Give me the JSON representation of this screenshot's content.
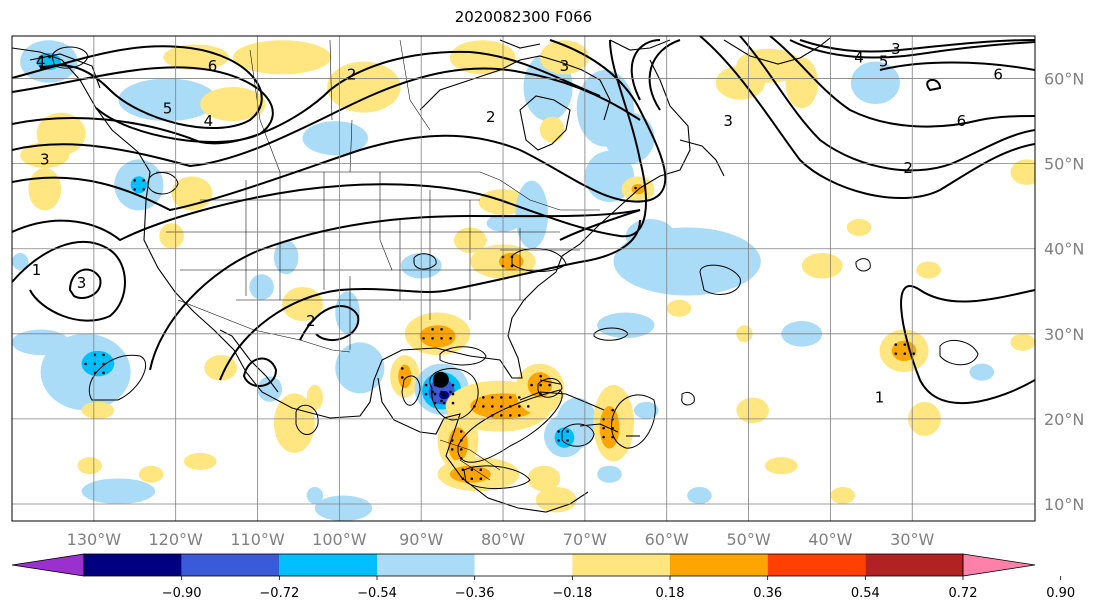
{
  "title": "2020082300 F066",
  "colors": {
    "coast": "#000000",
    "grid": "#808080",
    "contour": "#000000",
    "storm_marker": "#000000"
  },
  "map": {
    "lon_min": -140,
    "lon_max": -15,
    "lat_min": 8,
    "lat_max": 65,
    "lon_ticks": [
      -130,
      -120,
      -110,
      -100,
      -90,
      -80,
      -70,
      -60,
      -50,
      -40,
      -30
    ],
    "lon_labels": [
      "130°W",
      "120°W",
      "110°W",
      "100°W",
      "90°W",
      "80°W",
      "70°W",
      "60°W",
      "50°W",
      "40°W",
      "30°W"
    ],
    "lat_ticks": [
      10,
      20,
      30,
      40,
      50,
      60
    ],
    "lat_labels": [
      "10°N",
      "20°N",
      "30°N",
      "40°N",
      "50°N",
      "60°N"
    ]
  },
  "storm": {
    "lon": -87.6,
    "lat": 24.6
  },
  "colorbar": {
    "colors": [
      "#9b30d0",
      "#000080",
      "#3a5bd9",
      "#00bfff",
      "#aadcf7",
      "#ffffff",
      "#ffe680",
      "#ffa500",
      "#ff4000",
      "#b22222",
      "#ff80a8"
    ],
    "labels": [
      "−0.90",
      "−0.72",
      "−0.54",
      "−0.36",
      "−0.18",
      "0.18",
      "0.36",
      "0.54",
      "0.72",
      "0.90"
    ]
  },
  "contour_labels": [
    {
      "text": "4",
      "lon": -136.5,
      "lat": 62.0
    },
    {
      "text": "3",
      "lon": -136.0,
      "lat": 50.5
    },
    {
      "text": "6",
      "lon": -115.5,
      "lat": 61.5
    },
    {
      "text": "5",
      "lon": -121.0,
      "lat": 56.5
    },
    {
      "text": "4",
      "lon": -116.0,
      "lat": 55.0
    },
    {
      "text": "2",
      "lon": -98.5,
      "lat": 60.5
    },
    {
      "text": "1",
      "lon": -137.0,
      "lat": 37.5
    },
    {
      "text": "3",
      "lon": -131.5,
      "lat": 36.0
    },
    {
      "text": "2",
      "lon": -103.5,
      "lat": 31.5
    },
    {
      "text": "2",
      "lon": -81.5,
      "lat": 55.5
    },
    {
      "text": "3",
      "lon": -72.5,
      "lat": 61.5
    },
    {
      "text": "3",
      "lon": -32.0,
      "lat": 63.5
    },
    {
      "text": "4",
      "lon": -36.5,
      "lat": 62.5
    },
    {
      "text": "5",
      "lon": -33.5,
      "lat": 62.0
    },
    {
      "text": "6",
      "lon": -19.5,
      "lat": 60.5
    },
    {
      "text": "3",
      "lon": -52.5,
      "lat": 55.0
    },
    {
      "text": "6",
      "lon": -24.0,
      "lat": 55.0
    },
    {
      "text": "2",
      "lon": -30.5,
      "lat": 49.5
    },
    {
      "text": "1",
      "lon": -34.0,
      "lat": 22.5
    }
  ],
  "fill_regions": [
    {
      "color": "#ffe680",
      "lon": -117.5,
      "lat": 62.5,
      "rx": 4.0,
      "ry": 1.5
    },
    {
      "color": "#ffe680",
      "lon": -107.0,
      "lat": 62.5,
      "rx": 6.0,
      "ry": 2.0
    },
    {
      "color": "#aadcf7",
      "lon": -135.5,
      "lat": 62.0,
      "rx": 3.5,
      "ry": 2.5
    },
    {
      "color": "#00bfff",
      "lon": -135.5,
      "lat": 62.0,
      "rx": 1.5,
      "ry": 1.0
    },
    {
      "color": "#aadcf7",
      "lon": -121.0,
      "lat": 57.5,
      "rx": 6.0,
      "ry": 2.5
    },
    {
      "color": "#ffe680",
      "lon": -113.0,
      "lat": 57.0,
      "rx": 4.0,
      "ry": 2.0
    },
    {
      "color": "#ffe680",
      "lon": -134.0,
      "lat": 53.5,
      "rx": 3.0,
      "ry": 2.5
    },
    {
      "color": "#ffe680",
      "lon": -136.0,
      "lat": 51.0,
      "rx": 3.0,
      "ry": 1.5
    },
    {
      "color": "#ffe680",
      "lon": -136.0,
      "lat": 47.0,
      "rx": 2.0,
      "ry": 2.5
    },
    {
      "color": "#aadcf7",
      "lon": -124.5,
      "lat": 47.5,
      "rx": 3.0,
      "ry": 3.0
    },
    {
      "color": "#00bfff",
      "lon": -124.5,
      "lat": 47.5,
      "rx": 1.0,
      "ry": 1.0
    },
    {
      "color": "#ffe680",
      "lon": -118.0,
      "lat": 46.5,
      "rx": 2.5,
      "ry": 2.0
    },
    {
      "color": "#aadcf7",
      "lon": -100.5,
      "lat": 53.0,
      "rx": 4.0,
      "ry": 2.0
    },
    {
      "color": "#ffe680",
      "lon": -97.0,
      "lat": 59.0,
      "rx": 4.5,
      "ry": 3.0
    },
    {
      "color": "#ffe680",
      "lon": -82.5,
      "lat": 62.5,
      "rx": 4.0,
      "ry": 2.0
    },
    {
      "color": "#aadcf7",
      "lon": -74.5,
      "lat": 59.0,
      "rx": 3.0,
      "ry": 4.0
    },
    {
      "color": "#ffe680",
      "lon": -72.5,
      "lat": 62.5,
      "rx": 3.0,
      "ry": 2.0
    },
    {
      "color": "#aadcf7",
      "lon": -67.5,
      "lat": 56.5,
      "rx": 3.5,
      "ry": 4.5
    },
    {
      "color": "#aadcf7",
      "lon": -64.5,
      "lat": 53.0,
      "rx": 3.0,
      "ry": 3.0
    },
    {
      "color": "#aadcf7",
      "lon": -67.0,
      "lat": 48.5,
      "rx": 3.0,
      "ry": 3.0
    },
    {
      "color": "#ffe680",
      "lon": -74.0,
      "lat": 54.0,
      "rx": 1.5,
      "ry": 1.5
    },
    {
      "color": "#ffe680",
      "lon": -63.5,
      "lat": 47.0,
      "rx": 2.0,
      "ry": 1.5
    },
    {
      "color": "#ffa500",
      "lon": -63.5,
      "lat": 47.0,
      "rx": 0.8,
      "ry": 0.6
    },
    {
      "color": "#ffe680",
      "lon": -47.5,
      "lat": 61.5,
      "rx": 4.0,
      "ry": 2.0
    },
    {
      "color": "#ffe680",
      "lon": -43.5,
      "lat": 59.5,
      "rx": 2.0,
      "ry": 3.0
    },
    {
      "color": "#ffe680",
      "lon": -51.0,
      "lat": 59.5,
      "rx": 3.0,
      "ry": 2.0
    },
    {
      "color": "#aadcf7",
      "lon": -34.5,
      "lat": 59.5,
      "rx": 3.0,
      "ry": 2.5
    },
    {
      "color": "#ffe680",
      "lon": -16.0,
      "lat": 49.0,
      "rx": 2.0,
      "ry": 1.5
    },
    {
      "color": "#ffe680",
      "lon": -80.0,
      "lat": 45.5,
      "rx": 3.0,
      "ry": 1.5
    },
    {
      "color": "#aadcf7",
      "lon": -80.0,
      "lat": 43.0,
      "rx": 2.0,
      "ry": 1.0
    },
    {
      "color": "#aadcf7",
      "lon": -76.5,
      "lat": 44.0,
      "rx": 2.0,
      "ry": 4.0
    },
    {
      "color": "#ffe680",
      "lon": -84.0,
      "lat": 41.0,
      "rx": 2.0,
      "ry": 1.5
    },
    {
      "color": "#ffe680",
      "lon": -80.0,
      "lat": 38.5,
      "rx": 4.0,
      "ry": 2.0
    },
    {
      "color": "#ffa500",
      "lon": -79.0,
      "lat": 38.5,
      "rx": 1.5,
      "ry": 1.0
    },
    {
      "color": "#aadcf7",
      "lon": -90.0,
      "lat": 38.0,
      "rx": 2.5,
      "ry": 1.5
    },
    {
      "color": "#aadcf7",
      "lon": -106.5,
      "lat": 39.0,
      "rx": 1.5,
      "ry": 2.0
    },
    {
      "color": "#aadcf7",
      "lon": -109.5,
      "lat": 35.5,
      "rx": 1.5,
      "ry": 1.5
    },
    {
      "color": "#ffe680",
      "lon": -120.5,
      "lat": 41.5,
      "rx": 1.5,
      "ry": 1.5
    },
    {
      "color": "#aadcf7",
      "lon": -139.0,
      "lat": 38.5,
      "rx": 1.0,
      "ry": 1.0
    },
    {
      "color": "#ffe680",
      "lon": -104.5,
      "lat": 33.5,
      "rx": 2.5,
      "ry": 2.0
    },
    {
      "color": "#aadcf7",
      "lon": -99.0,
      "lat": 32.5,
      "rx": 1.5,
      "ry": 2.5
    },
    {
      "color": "#aadcf7",
      "lon": -57.5,
      "lat": 38.5,
      "rx": 9.0,
      "ry": 4.0
    },
    {
      "color": "#aadcf7",
      "lon": -62.0,
      "lat": 41.5,
      "rx": 3.0,
      "ry": 2.0
    },
    {
      "color": "#aadcf7",
      "lon": -55.0,
      "lat": 37.5,
      "rx": 3.5,
      "ry": 2.5
    },
    {
      "color": "#ffe680",
      "lon": -41.0,
      "lat": 38.0,
      "rx": 2.5,
      "ry": 1.5
    },
    {
      "color": "#ffe680",
      "lon": -36.5,
      "lat": 42.5,
      "rx": 1.5,
      "ry": 1.0
    },
    {
      "color": "#ffe680",
      "lon": -28.0,
      "lat": 37.5,
      "rx": 1.5,
      "ry": 1.0
    },
    {
      "color": "#aadcf7",
      "lon": -65.0,
      "lat": 31.0,
      "rx": 3.5,
      "ry": 1.5
    },
    {
      "color": "#aadcf7",
      "lon": -43.5,
      "lat": 30.0,
      "rx": 2.5,
      "ry": 1.5
    },
    {
      "color": "#ffe680",
      "lon": -58.5,
      "lat": 33.0,
      "rx": 1.5,
      "ry": 1.0
    },
    {
      "color": "#aadcf7",
      "lon": -131.0,
      "lat": 25.5,
      "rx": 5.5,
      "ry": 4.5
    },
    {
      "color": "#00bfff",
      "lon": -129.5,
      "lat": 26.5,
      "rx": 2.0,
      "ry": 1.5
    },
    {
      "color": "#aadcf7",
      "lon": -136.5,
      "lat": 29.0,
      "rx": 3.5,
      "ry": 1.5
    },
    {
      "color": "#ffe680",
      "lon": -129.5,
      "lat": 21.0,
      "rx": 2.0,
      "ry": 1.0
    },
    {
      "color": "#aadcf7",
      "lon": -127.0,
      "lat": 11.5,
      "rx": 4.5,
      "ry": 1.5
    },
    {
      "color": "#ffe680",
      "lon": -114.5,
      "lat": 26.0,
      "rx": 2.0,
      "ry": 1.5
    },
    {
      "color": "#ffe680",
      "lon": -117.0,
      "lat": 15.0,
      "rx": 2.0,
      "ry": 1.0
    },
    {
      "color": "#ffe680",
      "lon": -105.5,
      "lat": 19.5,
      "rx": 2.5,
      "ry": 3.5
    },
    {
      "color": "#aadcf7",
      "lon": -108.5,
      "lat": 23.5,
      "rx": 1.5,
      "ry": 1.5
    },
    {
      "color": "#ffe680",
      "lon": -103.0,
      "lat": 22.5,
      "rx": 1.0,
      "ry": 1.5
    },
    {
      "color": "#aadcf7",
      "lon": -99.5,
      "lat": 9.5,
      "rx": 3.5,
      "ry": 1.5
    },
    {
      "color": "#aadcf7",
      "lon": -97.5,
      "lat": 26.0,
      "rx": 3.0,
      "ry": 3.0
    },
    {
      "color": "#ffe680",
      "lon": -88.0,
      "lat": 30.0,
      "rx": 4.0,
      "ry": 2.5
    },
    {
      "color": "#ffa500",
      "lon": -88.0,
      "lat": 29.7,
      "rx": 2.2,
      "ry": 1.3
    },
    {
      "color": "#ffe680",
      "lon": -92.0,
      "lat": 25.0,
      "rx": 1.8,
      "ry": 2.5
    },
    {
      "color": "#ffa500",
      "lon": -92.0,
      "lat": 25.0,
      "rx": 0.8,
      "ry": 1.4
    },
    {
      "color": "#aadcf7",
      "lon": -87.5,
      "lat": 23.5,
      "rx": 3.3,
      "ry": 3.0
    },
    {
      "color": "#00bfff",
      "lon": -87.5,
      "lat": 23.3,
      "rx": 2.4,
      "ry": 2.2
    },
    {
      "color": "#3a5bd9",
      "lon": -87.5,
      "lat": 23.2,
      "rx": 1.6,
      "ry": 1.5
    },
    {
      "color": "#000080",
      "lon": -87.2,
      "lat": 22.8,
      "rx": 0.6,
      "ry": 0.5
    },
    {
      "color": "#ffe680",
      "lon": -80.5,
      "lat": 21.5,
      "rx": 6.5,
      "ry": 3.0
    },
    {
      "color": "#ffa500",
      "lon": -80.0,
      "lat": 21.5,
      "rx": 4.0,
      "ry": 1.5
    },
    {
      "color": "#ffe680",
      "lon": -75.5,
      "lat": 23.5,
      "rx": 3.0,
      "ry": 3.0
    },
    {
      "color": "#ffa500",
      "lon": -75.5,
      "lat": 24.0,
      "rx": 1.5,
      "ry": 1.5
    },
    {
      "color": "#ffe680",
      "lon": -85.5,
      "lat": 17.5,
      "rx": 2.5,
      "ry": 3.5
    },
    {
      "color": "#ffa500",
      "lon": -85.5,
      "lat": 17.0,
      "rx": 1.2,
      "ry": 2.0
    },
    {
      "color": "#ffe680",
      "lon": -83.0,
      "lat": 13.5,
      "rx": 5.0,
      "ry": 2.0
    },
    {
      "color": "#ffa500",
      "lon": -84.0,
      "lat": 13.5,
      "rx": 2.5,
      "ry": 1.0
    },
    {
      "color": "#ffe680",
      "lon": -75.0,
      "lat": 13.0,
      "rx": 2.0,
      "ry": 1.5
    },
    {
      "color": "#ffe680",
      "lon": -73.5,
      "lat": 10.5,
      "rx": 2.5,
      "ry": 1.5
    },
    {
      "color": "#aadcf7",
      "lon": -71.0,
      "lat": 19.5,
      "rx": 2.5,
      "ry": 3.0
    },
    {
      "color": "#aadcf7",
      "lon": -72.5,
      "lat": 18.0,
      "rx": 2.5,
      "ry": 2.5
    },
    {
      "color": "#00bfff",
      "lon": -72.5,
      "lat": 17.8,
      "rx": 1.2,
      "ry": 1.2
    },
    {
      "color": "#ffe680",
      "lon": -66.5,
      "lat": 19.5,
      "rx": 2.5,
      "ry": 4.5
    },
    {
      "color": "#ffa500",
      "lon": -67.0,
      "lat": 19.0,
      "rx": 1.2,
      "ry": 2.5
    },
    {
      "color": "#aadcf7",
      "lon": -62.5,
      "lat": 21.0,
      "rx": 1.5,
      "ry": 1.0
    },
    {
      "color": "#ffe680",
      "lon": -49.5,
      "lat": 21.0,
      "rx": 2.0,
      "ry": 1.5
    },
    {
      "color": "#ffe680",
      "lon": -46.0,
      "lat": 14.5,
      "rx": 2.0,
      "ry": 1.0
    },
    {
      "color": "#ffe680",
      "lon": -31.0,
      "lat": 28.0,
      "rx": 3.0,
      "ry": 2.5
    },
    {
      "color": "#ffa500",
      "lon": -31.0,
      "lat": 28.0,
      "rx": 1.5,
      "ry": 1.2
    },
    {
      "color": "#ffe680",
      "lon": -28.5,
      "lat": 20.0,
      "rx": 2.0,
      "ry": 2.0
    },
    {
      "color": "#aadcf7",
      "lon": -21.5,
      "lat": 25.5,
      "rx": 1.5,
      "ry": 1.0
    },
    {
      "color": "#ffe680",
      "lon": -16.5,
      "lat": 29.0,
      "rx": 1.5,
      "ry": 1.0
    },
    {
      "color": "#ffe680",
      "lon": -50.5,
      "lat": 30.0,
      "rx": 1.0,
      "ry": 1.0
    },
    {
      "color": "#aadcf7",
      "lon": -67.0,
      "lat": 13.5,
      "rx": 1.5,
      "ry": 1.0
    },
    {
      "color": "#ffe680",
      "lon": -38.5,
      "lat": 11.0,
      "rx": 1.5,
      "ry": 1.0
    },
    {
      "color": "#aadcf7",
      "lon": -56.0,
      "lat": 11.0,
      "rx": 1.5,
      "ry": 1.0
    },
    {
      "color": "#ffe680",
      "lon": -130.5,
      "lat": 14.5,
      "rx": 1.5,
      "ry": 1.0
    },
    {
      "color": "#aadcf7",
      "lon": -103.0,
      "lat": 11.0,
      "rx": 1.0,
      "ry": 1.0
    },
    {
      "color": "#ffe680",
      "lon": -123.0,
      "lat": 13.5,
      "rx": 1.5,
      "ry": 1.0
    }
  ]
}
